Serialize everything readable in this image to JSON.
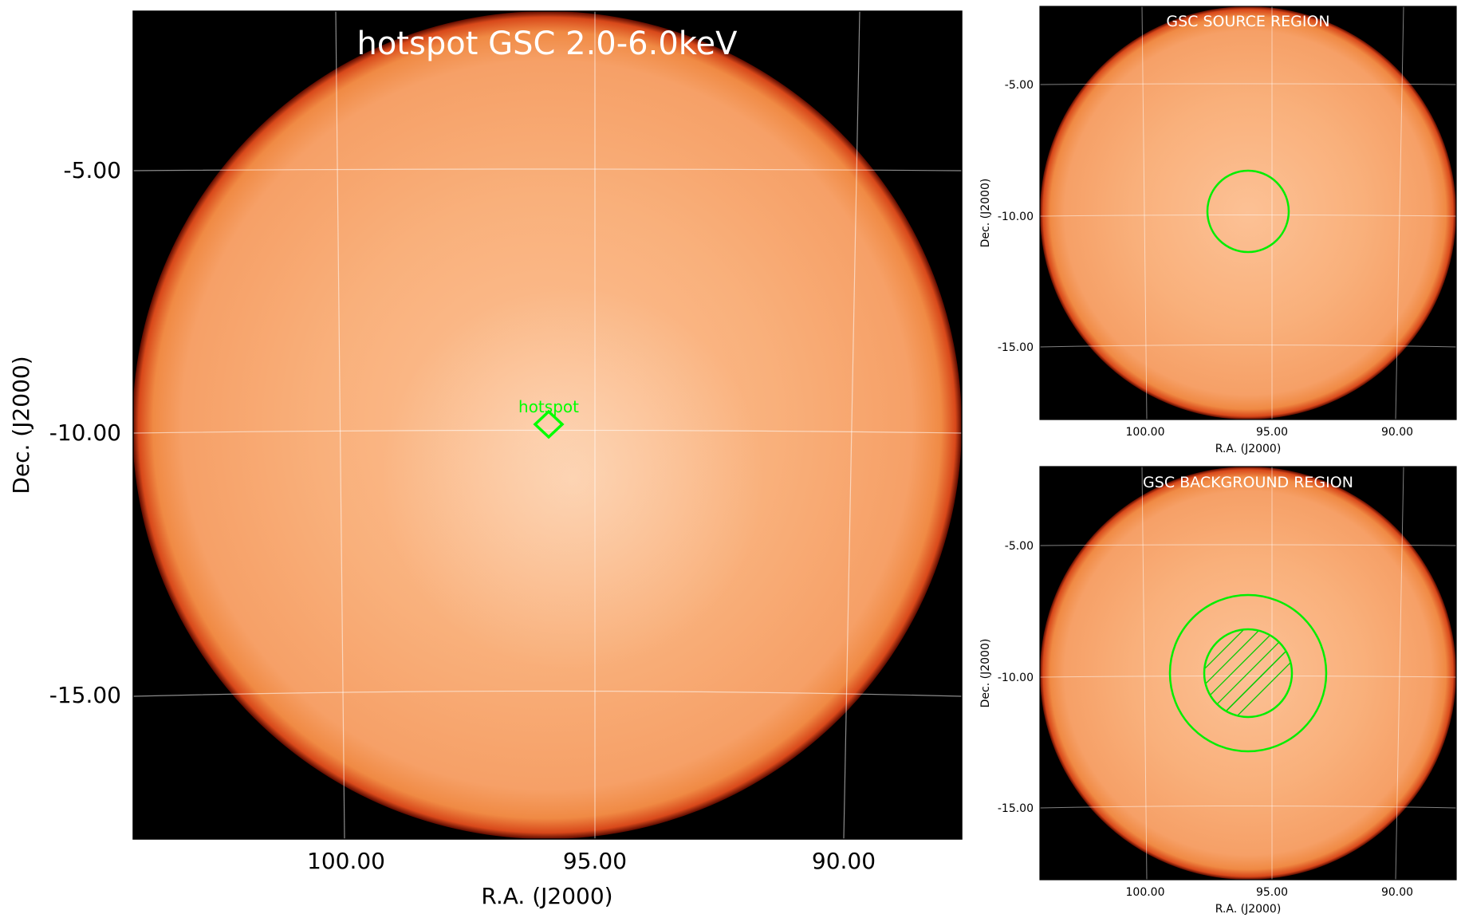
{
  "main": {
    "title": "hotspot GSC 2.0-6.0keV",
    "xlabel": "R.A. (J2000)",
    "ylabel": "Dec. (J2000)",
    "x_ticks": [
      "100.00",
      "95.00",
      "90.00"
    ],
    "y_ticks": [
      "-5.00",
      "-10.00",
      "-15.00"
    ],
    "marker_label": "hotspot",
    "marker_shape": "diamond",
    "marker_color": "#00ff00"
  },
  "source_panel": {
    "title": "GSC SOURCE REGION",
    "xlabel": "R.A. (J2000)",
    "ylabel": "Dec. (J2000)",
    "x_ticks": [
      "100.00",
      "95.00",
      "90.00"
    ],
    "y_ticks": [
      "-5.00",
      "-10.00",
      "-15.00"
    ],
    "region": "circle"
  },
  "background_panel": {
    "title": "GSC BACKGROUND REGION",
    "xlabel": "R.A. (J2000)",
    "ylabel": "Dec. (J2000)",
    "x_ticks": [
      "100.00",
      "95.00",
      "90.00"
    ],
    "y_ticks": [
      "-5.00",
      "-10.00",
      "-15.00"
    ],
    "region": "annulus with hatched excluded source circle"
  },
  "colors": {
    "sky_disk": "#f7a060",
    "sky_edge": "#e8501a",
    "background": "#000000",
    "grid": "#ffffff",
    "region": "#00ee00"
  }
}
